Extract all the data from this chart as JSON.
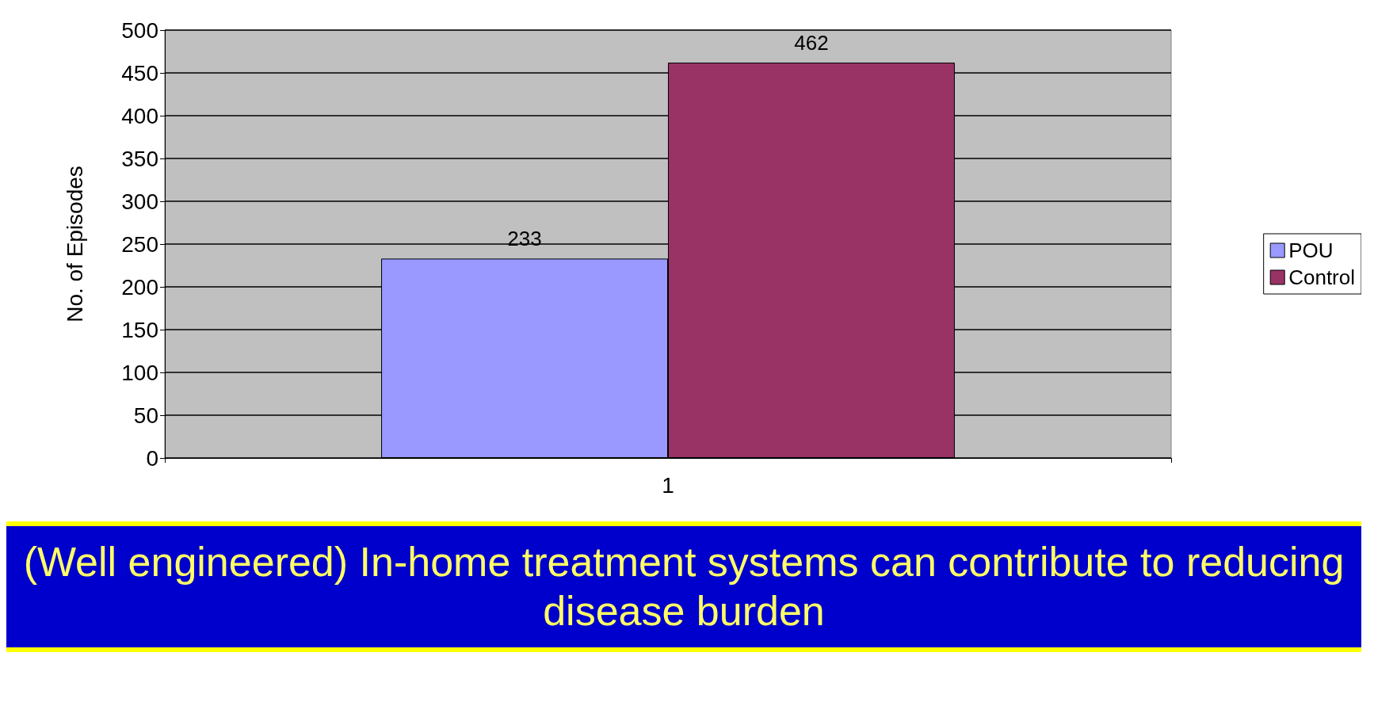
{
  "chart_data": {
    "type": "bar",
    "ylabel": "No. of Episodes",
    "categories": [
      "1"
    ],
    "series": [
      {
        "name": "POU",
        "color": "#9999ff",
        "values": [
          233
        ]
      },
      {
        "name": "Control",
        "color": "#993366",
        "values": [
          462
        ]
      }
    ],
    "ylim": [
      0,
      500
    ],
    "yticks": [
      0,
      50,
      100,
      150,
      200,
      250,
      300,
      350,
      400,
      450,
      500
    ],
    "grid": "y",
    "legend": "right",
    "data_labels": true,
    "annotations": [
      "(Well engineered) In-home treatment systems can contribute to reducing disease burden"
    ]
  }
}
